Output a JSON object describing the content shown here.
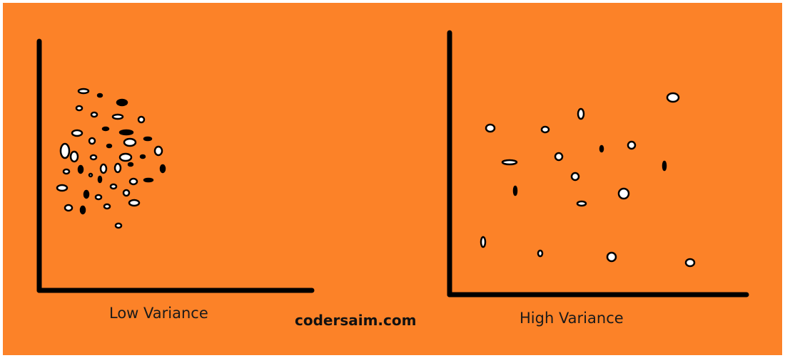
{
  "panels": [
    {
      "caption": "Low Variance",
      "points": [
        [
          117,
          128,
          "white",
          7,
          3
        ],
        [
          140,
          134,
          "black",
          3,
          2
        ],
        [
          171,
          144,
          "black",
          7,
          4
        ],
        [
          111,
          152,
          "white",
          4,
          3
        ],
        [
          132,
          161,
          "white",
          4,
          3
        ],
        [
          165,
          164,
          "white",
          7,
          3
        ],
        [
          198,
          168,
          "white",
          4,
          4
        ],
        [
          148,
          181,
          "black",
          4,
          2
        ],
        [
          108,
          187,
          "white",
          7,
          4
        ],
        [
          177,
          186,
          "black",
          9,
          3
        ],
        [
          207,
          195,
          "black",
          5,
          2
        ],
        [
          129,
          198,
          "white",
          4,
          4
        ],
        [
          182,
          200,
          "white",
          8,
          5
        ],
        [
          153,
          205,
          "black",
          3,
          2
        ],
        [
          91,
          212,
          "white",
          6,
          10
        ],
        [
          104,
          220,
          "white",
          5,
          7
        ],
        [
          131,
          221,
          "white",
          4,
          3
        ],
        [
          176,
          221,
          "white",
          8,
          5
        ],
        [
          222,
          212,
          "white",
          5,
          6
        ],
        [
          200,
          220,
          "black",
          3,
          2
        ],
        [
          93,
          241,
          "white",
          4,
          3
        ],
        [
          113,
          238,
          "black",
          3,
          5
        ],
        [
          127,
          246,
          "white",
          2,
          2
        ],
        [
          145,
          237,
          "white",
          4,
          6
        ],
        [
          165,
          236,
          "white",
          4,
          6
        ],
        [
          183,
          231,
          "black",
          3,
          2
        ],
        [
          228,
          237,
          "black",
          3,
          5
        ],
        [
          140,
          252,
          "black",
          2,
          4
        ],
        [
          187,
          255,
          "white",
          5,
          4
        ],
        [
          159,
          262,
          "white",
          4,
          3
        ],
        [
          208,
          253,
          "black",
          6,
          2
        ],
        [
          87,
          264,
          "white",
          7,
          4
        ],
        [
          121,
          273,
          "black",
          3,
          5
        ],
        [
          138,
          277,
          "white",
          4,
          3
        ],
        [
          177,
          271,
          "white",
          4,
          4
        ],
        [
          188,
          285,
          "white",
          7,
          4
        ],
        [
          96,
          292,
          "white",
          5,
          4
        ],
        [
          116,
          295,
          "black",
          3,
          5
        ],
        [
          150,
          290,
          "white",
          4,
          3
        ],
        [
          166,
          317,
          "white",
          4,
          3
        ]
      ]
    },
    {
      "caption": "High Variance",
      "points": [
        [
          943,
          137,
          "white",
          8,
          6
        ],
        [
          814,
          160,
          "white",
          4,
          7
        ],
        [
          687,
          180,
          "white",
          6,
          5
        ],
        [
          764,
          182,
          "white",
          5,
          4
        ],
        [
          885,
          204,
          "white",
          5,
          5
        ],
        [
          843,
          209,
          "black",
          2,
          4
        ],
        [
          783,
          220,
          "white",
          5,
          5
        ],
        [
          714,
          228,
          "white",
          10,
          3
        ],
        [
          931,
          233,
          "black",
          2,
          6
        ],
        [
          806,
          248,
          "white",
          5,
          5
        ],
        [
          722,
          268,
          "black",
          2,
          6
        ],
        [
          874,
          272,
          "white",
          7,
          7
        ],
        [
          815,
          286,
          "white",
          6,
          3
        ],
        [
          677,
          340,
          "white",
          3,
          7
        ],
        [
          757,
          356,
          "white",
          3,
          4
        ],
        [
          857,
          361,
          "white",
          6,
          6
        ],
        [
          967,
          369,
          "white",
          6,
          5
        ]
      ]
    }
  ],
  "watermark": "codersaim.com",
  "colors": {
    "background": "#fc8228",
    "axis": "#000000",
    "point_white": "#ffffff",
    "point_black": "#000000"
  }
}
